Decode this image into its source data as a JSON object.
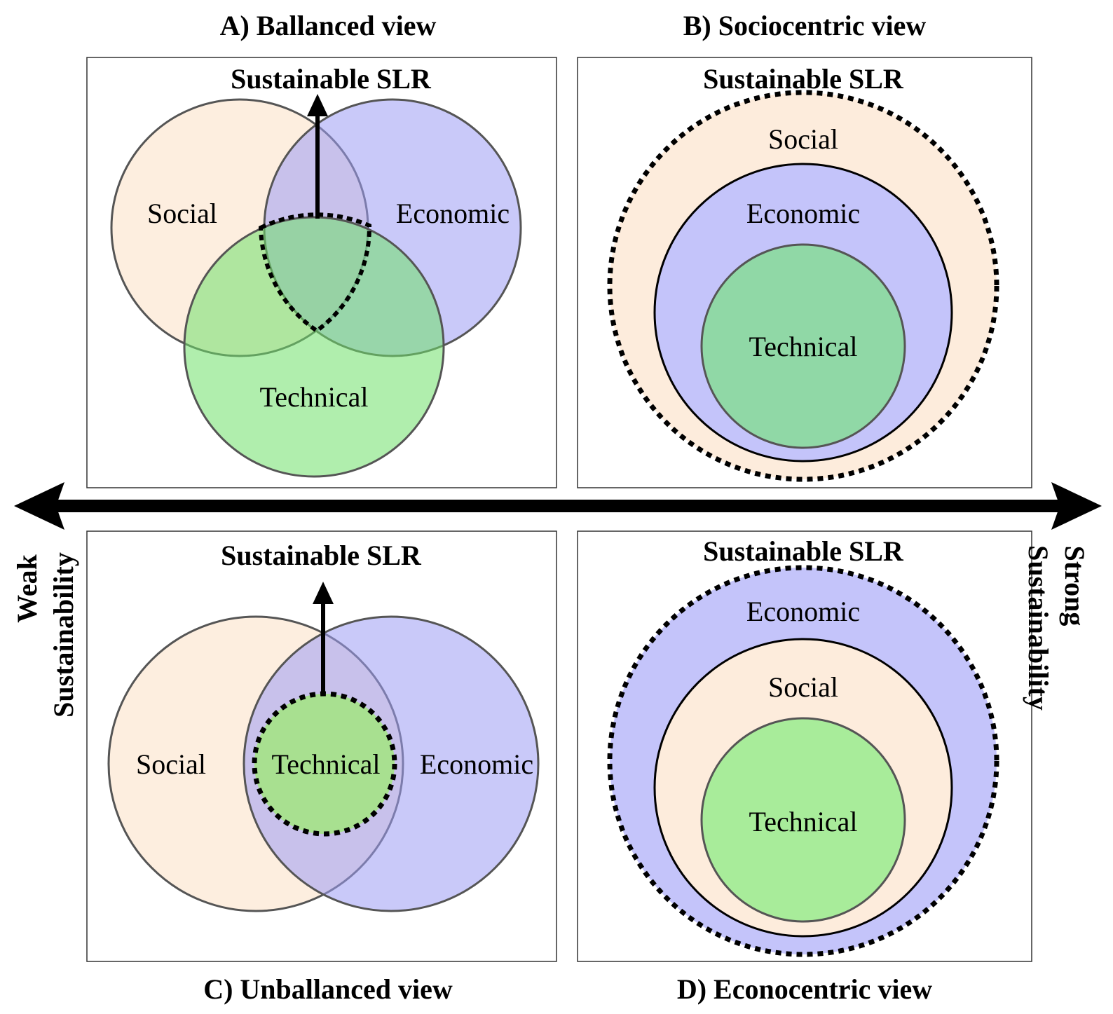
{
  "panels": {
    "a": {
      "title": "A) Ballanced view",
      "slr": "Sustainable SLR",
      "social": "Social",
      "economic": "Economic",
      "technical": "Technical"
    },
    "b": {
      "title": "B) Sociocentric view",
      "slr": "Sustainable SLR",
      "social": "Social",
      "economic": "Economic",
      "technical": "Technical"
    },
    "c": {
      "title": "C) Unballanced view",
      "slr": "Sustainable SLR",
      "social": "Social",
      "economic": "Economic",
      "technical": "Technical"
    },
    "d": {
      "title": "D) Econocentric view",
      "slr": "Sustainable SLR",
      "social": "Social",
      "economic": "Economic",
      "technical": "Technical"
    }
  },
  "axis": {
    "weak": "Weak",
    "weak_sub": "Sustainability",
    "strong": "Strong",
    "strong_sub": "Sustainability"
  },
  "colors": {
    "social": "#fdebd9",
    "economic": "#b3b3f7",
    "technical": "#8ee88a",
    "outline": "#000000"
  }
}
